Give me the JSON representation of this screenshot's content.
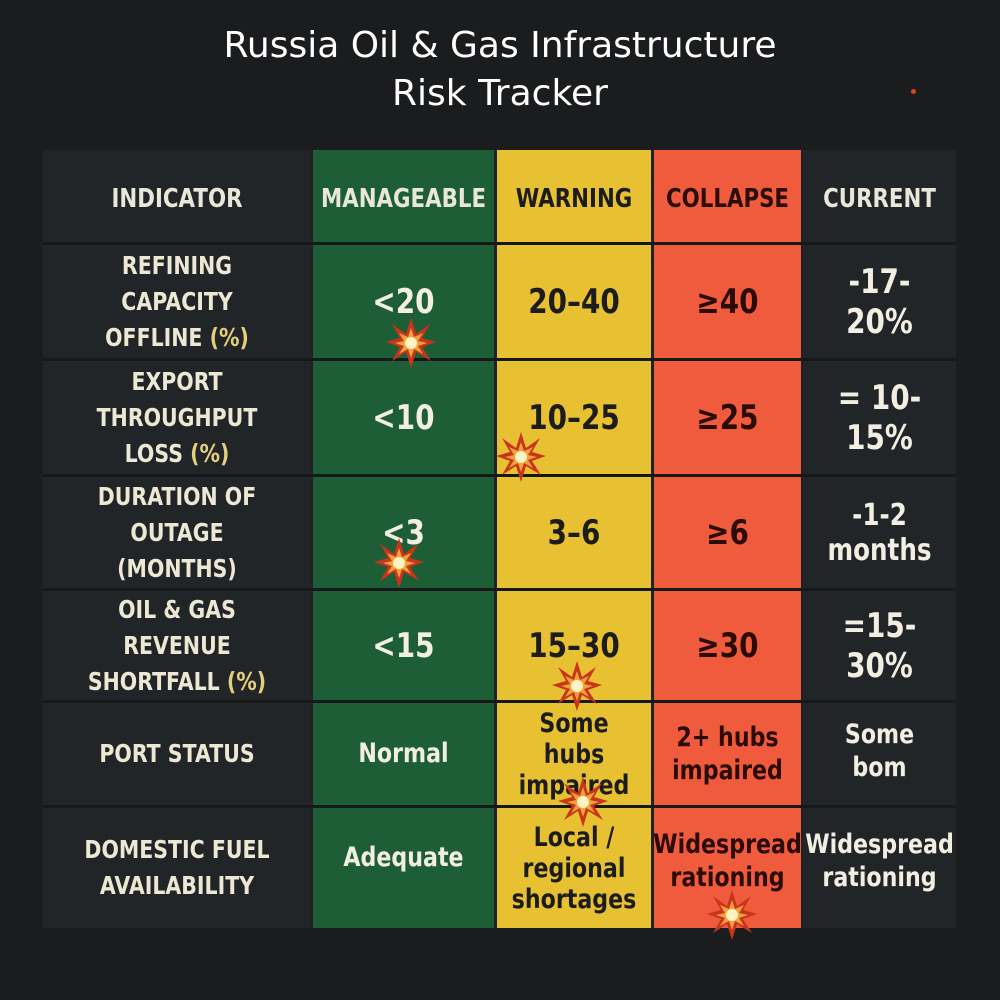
{
  "title": {
    "line1": "Russia Oil & Gas Infrastructure",
    "line2": "Risk Tracker"
  },
  "colors": {
    "background": "#1b1c1e",
    "manageable": "#1e5e36",
    "warning": "#e8c132",
    "collapse": "#ef5b3c",
    "dark_cell": "#222528"
  },
  "headers": {
    "indicator": "INDICATOR",
    "manageable": "MANAGEABLE",
    "warning": "WARNING",
    "collapse": "COLLAPSE",
    "current": "CURRENT"
  },
  "rows": [
    {
      "indicator_line1": "REFINING CAPACITY",
      "indicator_line2": "OFFLINE",
      "indicator_suffix": "(%)",
      "manageable": "<20",
      "warning": "20–40",
      "collapse": "≥40",
      "current": "-17-20%"
    },
    {
      "indicator_line1": "EXPORT THROUGHPUT",
      "indicator_line2": "LOSS",
      "indicator_suffix": "(%)",
      "manageable": "<10",
      "warning": "10–25",
      "collapse": "≥25",
      "current": "= 10-15%"
    },
    {
      "indicator_line1": "DURATION OF",
      "indicator_line2": "OUTAGE (MONTHS)",
      "indicator_suffix": "",
      "manageable": "<3",
      "warning": "3–6",
      "collapse": "≥6",
      "current": "-1-2 months"
    },
    {
      "indicator_line1": "OIL & GAS REVENUE",
      "indicator_line2": "SHORTFALL",
      "indicator_suffix": "(%)",
      "manageable": "<15",
      "warning": "15–30",
      "collapse": "≥30",
      "current": "=15-30%"
    },
    {
      "indicator_line1": "PORT STATUS",
      "indicator_line2": "",
      "indicator_suffix": "",
      "manageable": "Normal",
      "warning_line1": "Some hubs",
      "warning_line2": "impaired",
      "collapse_line1": "2+ hubs",
      "collapse_line2": "impaired",
      "current": "Some bom"
    },
    {
      "indicator_line1": "DOMESTIC FUEL",
      "indicator_line2": "AVAILABILITY",
      "indicator_suffix": "",
      "manageable": "Adequate",
      "warning_line1": "Local /",
      "warning_line2": "regional",
      "warning_line3": "shortages",
      "collapse_line1": "Widespread",
      "collapse_line2": "rationing",
      "current_line1": "Widespread",
      "current_line2": "rationing"
    }
  ]
}
